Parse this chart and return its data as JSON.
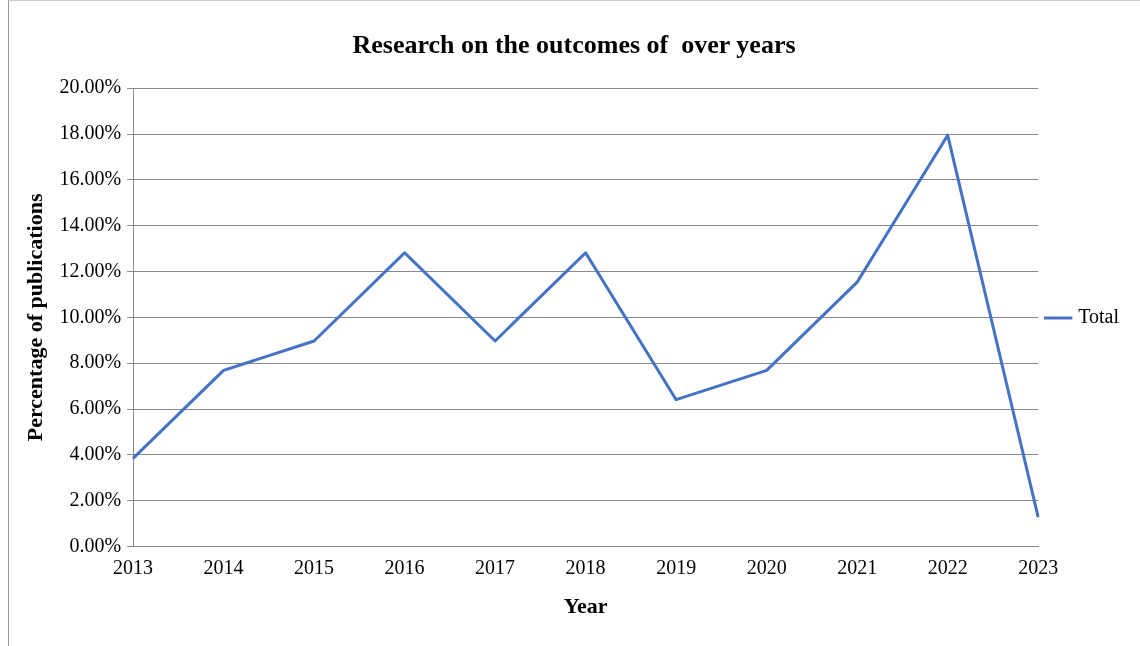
{
  "chart_data": {
    "type": "line",
    "title": "Research on the outcomes of  over years",
    "xlabel": "Year",
    "ylabel": "Percentage of publications",
    "categories": [
      "2013",
      "2014",
      "2015",
      "2016",
      "2017",
      "2018",
      "2019",
      "2020",
      "2021",
      "2022",
      "2023"
    ],
    "series": [
      {
        "name": "Total",
        "color": "#4472c4",
        "values": [
          3.85,
          7.69,
          8.97,
          12.82,
          8.97,
          12.82,
          6.41,
          7.69,
          11.54,
          17.95,
          1.28
        ]
      }
    ],
    "ylim": [
      0,
      20
    ],
    "yticks": [
      {
        "value": 0,
        "label": "0.00%"
      },
      {
        "value": 2,
        "label": "2.00%"
      },
      {
        "value": 4,
        "label": "4.00%"
      },
      {
        "value": 6,
        "label": "6.00%"
      },
      {
        "value": 8,
        "label": "8.00%"
      },
      {
        "value": 10,
        "label": "10.00%"
      },
      {
        "value": 12,
        "label": "12.00%"
      },
      {
        "value": 14,
        "label": "14.00%"
      },
      {
        "value": 16,
        "label": "16.00%"
      },
      {
        "value": 18,
        "label": "18.00%"
      },
      {
        "value": 20,
        "label": "20.00%"
      }
    ],
    "grid": "y",
    "legend": "right",
    "marker": "none",
    "line_style": "solid"
  }
}
